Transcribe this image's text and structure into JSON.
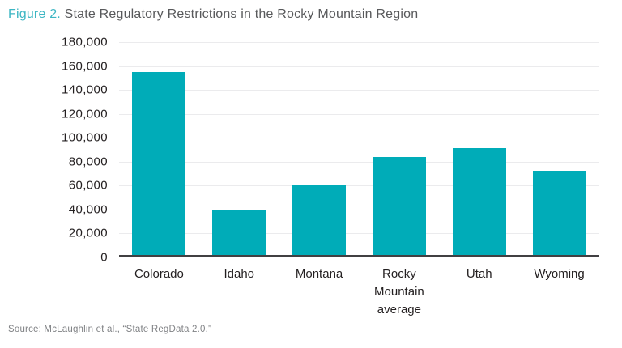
{
  "title": {
    "prefix": "Figure 2.",
    "text": "State Regulatory Restrictions in the Rocky Mountain Region"
  },
  "source": "Source: McLaughlin et al., “State RegData 2.0.”",
  "colors": {
    "bar": "#00ACB8",
    "title_prefix": "#3CB6C3",
    "title_text": "#58595B",
    "gridline": "#EBEBED",
    "axis": "#414042",
    "tick": "#231F20",
    "source": "#808285",
    "background": "#FFFFFF"
  },
  "chart_data": {
    "type": "bar",
    "title": "State Regulatory Restrictions in the Rocky Mountain Region",
    "categories": [
      "Colorado",
      "Idaho",
      "Montana",
      "Rocky Mountain average",
      "Utah",
      "Wyoming"
    ],
    "values": [
      154500,
      38000,
      59000,
      83000,
      90400,
      71000
    ],
    "xlabel": "",
    "ylabel": "",
    "ylim": [
      0,
      180000
    ],
    "ytick_step": 20000,
    "ytick_labels": [
      "180,000",
      "160,000",
      "140,000",
      "120,000",
      "100,000",
      "80,000",
      "60,000",
      "40,000",
      "20,000",
      "0"
    ],
    "grid": "horizontal-only",
    "legend": "none",
    "bar_color": "#00ACB8",
    "source_note": "Source: McLaughlin et al., “State RegData 2.0.”"
  }
}
